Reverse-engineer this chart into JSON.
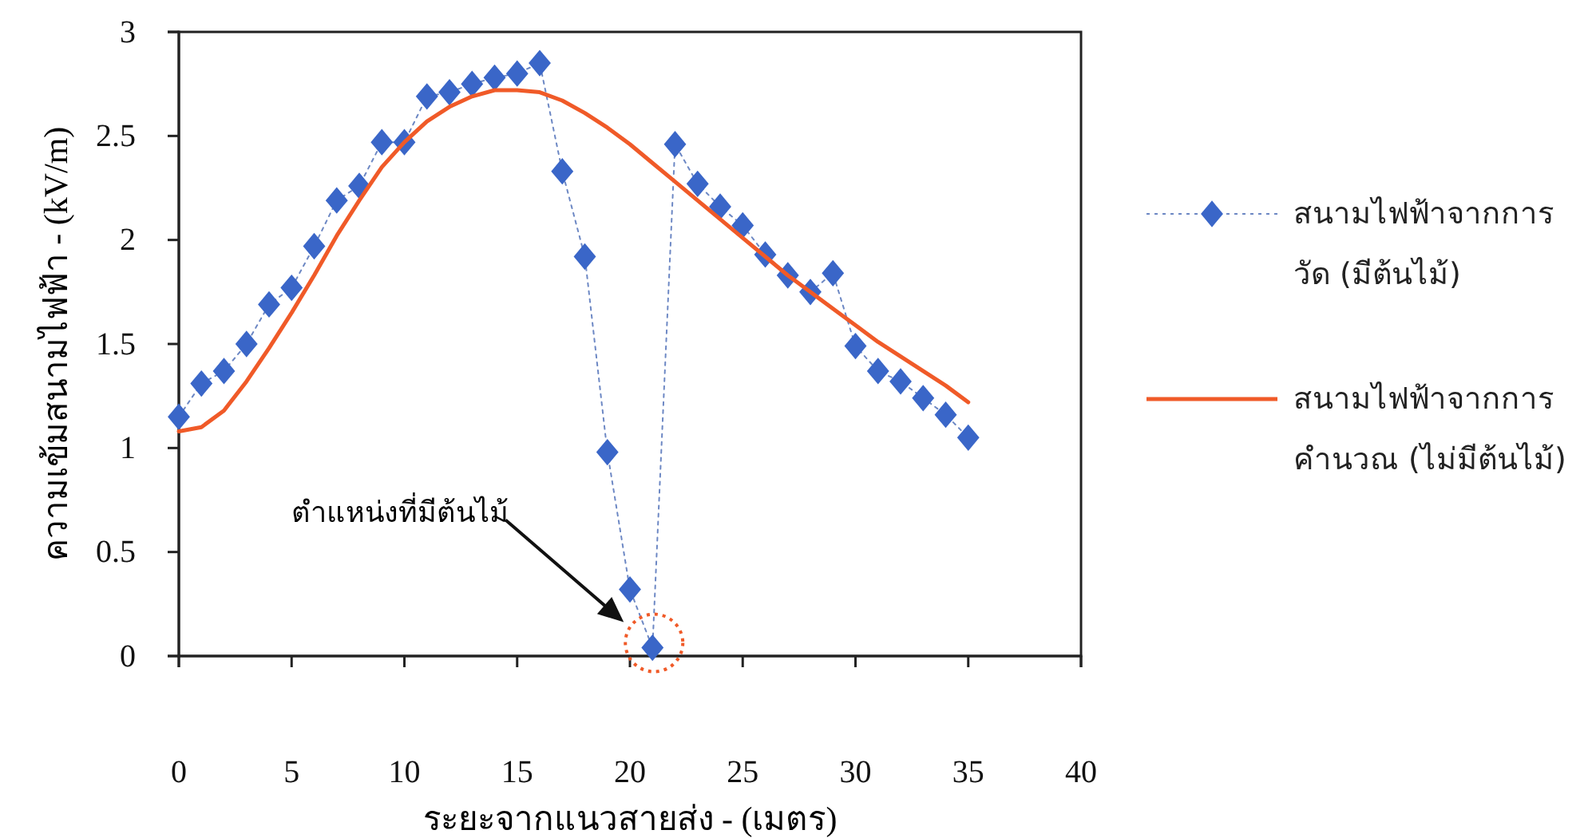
{
  "chart_data": {
    "type": "line",
    "xlabel": "ระยะจากแนวสายส่ง - (เมตร)",
    "ylabel": "ความเข้มสนามไฟฟ้า - (kV/m)",
    "x": [
      0,
      1,
      2,
      3,
      4,
      5,
      6,
      7,
      8,
      9,
      10,
      11,
      12,
      13,
      14,
      15,
      16,
      17,
      18,
      19,
      20,
      21,
      22,
      23,
      24,
      25,
      26,
      27,
      28,
      29,
      30,
      31,
      32,
      33,
      34,
      35
    ],
    "series": [
      {
        "name": "สนามไฟฟ้าจากการวัด (มีต้นไม้)",
        "color": "#3a66c8",
        "marker": "diamond",
        "line_style": "dotted",
        "values": [
          1.15,
          1.31,
          1.37,
          1.5,
          1.69,
          1.77,
          1.97,
          2.19,
          2.26,
          2.47,
          2.47,
          2.69,
          2.71,
          2.75,
          2.78,
          2.8,
          2.85,
          2.33,
          1.92,
          0.98,
          0.32,
          0.04,
          2.46,
          2.27,
          2.16,
          2.07,
          1.93,
          1.83,
          1.75,
          1.84,
          1.49,
          1.37,
          1.32,
          1.24,
          1.16,
          1.05
        ]
      },
      {
        "name": "สนามไฟฟ้าจากการคำนวณ (ไม่มีต้นไม้)",
        "color": "#f05a28",
        "marker": "none",
        "line_style": "solid",
        "values": [
          1.08,
          1.1,
          1.18,
          1.32,
          1.48,
          1.65,
          1.83,
          2.02,
          2.19,
          2.35,
          2.47,
          2.57,
          2.64,
          2.69,
          2.72,
          2.72,
          2.71,
          2.67,
          2.61,
          2.54,
          2.46,
          2.37,
          2.28,
          2.19,
          2.1,
          2.01,
          1.92,
          1.83,
          1.75,
          1.67,
          1.59,
          1.51,
          1.44,
          1.37,
          1.3,
          1.22
        ]
      }
    ],
    "xlim": [
      0,
      40
    ],
    "xticks": [
      0,
      5,
      10,
      15,
      20,
      25,
      30,
      35,
      40
    ],
    "ylim": [
      0,
      3
    ],
    "yticks": [
      0,
      0.5,
      1,
      1.5,
      2,
      2.5,
      3
    ],
    "grid": false,
    "legend": "right",
    "annotations": [
      "ตำแหน่งที่มีต้นไม้"
    ]
  }
}
